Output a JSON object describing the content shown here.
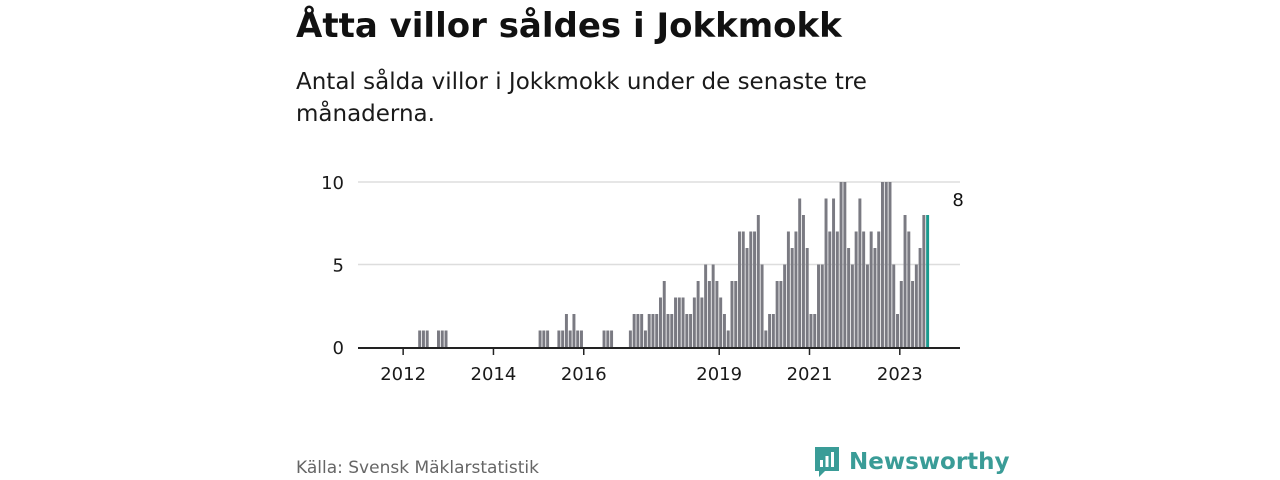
{
  "header": {
    "title": "Åtta villor såldes i Jokkmokk",
    "subtitle": "Antal sålda villor i Jokkmokk under de senaste tre månaderna."
  },
  "footer": {
    "source": "Källa: Svensk Mäklarstatistik",
    "brand": "Newsworthy",
    "brand_icon": "bar-chart-logo-icon"
  },
  "colors": {
    "bar": "#7a7a82",
    "highlight": "#1a9a8e",
    "grid": "#dddddd",
    "axis": "#222222",
    "brand": "#3a9c97"
  },
  "chart_data": {
    "type": "bar",
    "title": "Åtta villor såldes i Jokkmokk",
    "xlabel": "",
    "ylabel": "",
    "ylim": [
      0,
      10
    ],
    "yticks": [
      0,
      5,
      10
    ],
    "x_start": "2011-01",
    "x_end": "2024-05",
    "xticks": [
      {
        "label": "2012",
        "date": "2012-01"
      },
      {
        "label": "2014",
        "date": "2014-01"
      },
      {
        "label": "2016",
        "date": "2016-01"
      },
      {
        "label": "2019",
        "date": "2019-01"
      },
      {
        "label": "2021",
        "date": "2021-01"
      },
      {
        "label": "2023",
        "date": "2023-01"
      }
    ],
    "series": [
      {
        "name": "Antal sålda villor (rullande tre månader)",
        "start": "2012-01",
        "values": [
          0,
          0,
          0,
          0,
          1,
          1,
          1,
          0,
          0,
          1,
          1,
          1,
          0,
          0,
          0,
          0,
          0,
          0,
          0,
          0,
          0,
          0,
          0,
          0,
          0,
          0,
          0,
          0,
          0,
          0,
          0,
          0,
          0,
          0,
          0,
          0,
          1,
          1,
          1,
          0,
          0,
          1,
          1,
          2,
          1,
          2,
          1,
          1,
          0,
          0,
          0,
          0,
          0,
          1,
          1,
          1,
          0,
          0,
          0,
          0,
          1,
          2,
          2,
          2,
          1,
          2,
          2,
          2,
          3,
          4,
          2,
          2,
          3,
          3,
          3,
          2,
          2,
          3,
          4,
          3,
          5,
          4,
          5,
          4,
          3,
          2,
          1,
          4,
          4,
          7,
          7,
          6,
          7,
          7,
          8,
          5,
          1,
          2,
          2,
          4,
          4,
          5,
          7,
          6,
          7,
          9,
          8,
          6,
          2,
          2,
          5,
          5,
          9,
          7,
          9,
          7,
          10,
          10,
          6,
          5,
          7,
          9,
          7,
          5,
          7,
          6,
          7,
          10,
          10,
          10,
          5,
          2,
          4,
          8,
          7,
          4,
          5,
          6,
          8,
          8
        ]
      }
    ],
    "annotations": [
      {
        "text": "8",
        "date": "2024-04",
        "value": 8,
        "highlight": true
      }
    ]
  }
}
